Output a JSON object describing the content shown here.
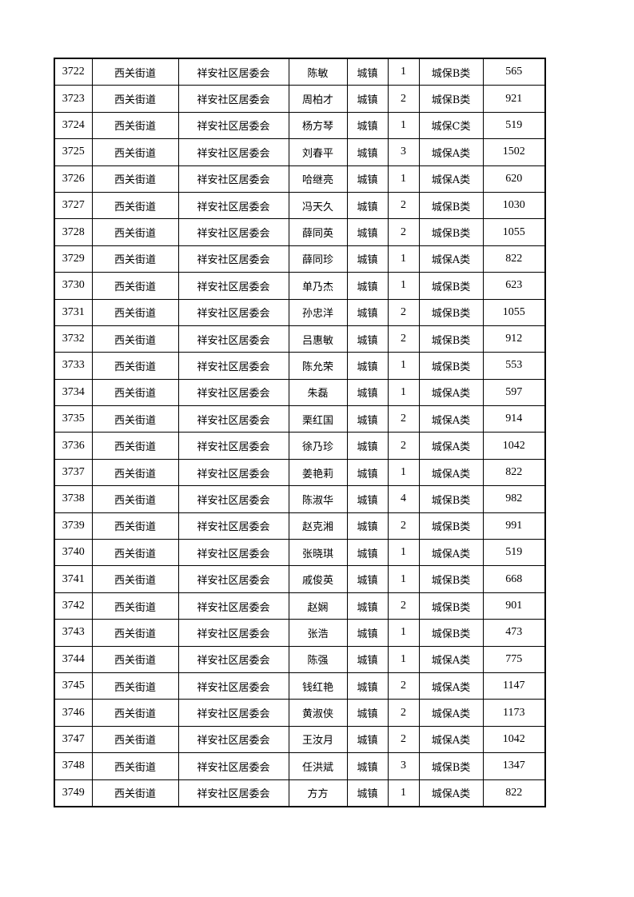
{
  "table": {
    "rows": [
      [
        "3722",
        "西关街道",
        "祥安社区居委会",
        "陈敏",
        "城镇",
        "1",
        "城保B类",
        "565"
      ],
      [
        "3723",
        "西关街道",
        "祥安社区居委会",
        "周柏才",
        "城镇",
        "2",
        "城保B类",
        "921"
      ],
      [
        "3724",
        "西关街道",
        "祥安社区居委会",
        "杨方琴",
        "城镇",
        "1",
        "城保C类",
        "519"
      ],
      [
        "3725",
        "西关街道",
        "祥安社区居委会",
        "刘春平",
        "城镇",
        "3",
        "城保A类",
        "1502"
      ],
      [
        "3726",
        "西关街道",
        "祥安社区居委会",
        "哈继亮",
        "城镇",
        "1",
        "城保A类",
        "620"
      ],
      [
        "3727",
        "西关街道",
        "祥安社区居委会",
        "冯天久",
        "城镇",
        "2",
        "城保B类",
        "1030"
      ],
      [
        "3728",
        "西关街道",
        "祥安社区居委会",
        "薛同英",
        "城镇",
        "2",
        "城保B类",
        "1055"
      ],
      [
        "3729",
        "西关街道",
        "祥安社区居委会",
        "薛同珍",
        "城镇",
        "1",
        "城保A类",
        "822"
      ],
      [
        "3730",
        "西关街道",
        "祥安社区居委会",
        "单乃杰",
        "城镇",
        "1",
        "城保B类",
        "623"
      ],
      [
        "3731",
        "西关街道",
        "祥安社区居委会",
        "孙忠洋",
        "城镇",
        "2",
        "城保B类",
        "1055"
      ],
      [
        "3732",
        "西关街道",
        "祥安社区居委会",
        "吕惠敏",
        "城镇",
        "2",
        "城保B类",
        "912"
      ],
      [
        "3733",
        "西关街道",
        "祥安社区居委会",
        "陈允荣",
        "城镇",
        "1",
        "城保B类",
        "553"
      ],
      [
        "3734",
        "西关街道",
        "祥安社区居委会",
        "朱磊",
        "城镇",
        "1",
        "城保A类",
        "597"
      ],
      [
        "3735",
        "西关街道",
        "祥安社区居委会",
        "栗红国",
        "城镇",
        "2",
        "城保A类",
        "914"
      ],
      [
        "3736",
        "西关街道",
        "祥安社区居委会",
        "徐乃珍",
        "城镇",
        "2",
        "城保A类",
        "1042"
      ],
      [
        "3737",
        "西关街道",
        "祥安社区居委会",
        "姜艳莉",
        "城镇",
        "1",
        "城保A类",
        "822"
      ],
      [
        "3738",
        "西关街道",
        "祥安社区居委会",
        "陈淑华",
        "城镇",
        "4",
        "城保B类",
        "982"
      ],
      [
        "3739",
        "西关街道",
        "祥安社区居委会",
        "赵克湘",
        "城镇",
        "2",
        "城保B类",
        "991"
      ],
      [
        "3740",
        "西关街道",
        "祥安社区居委会",
        "张晓琪",
        "城镇",
        "1",
        "城保A类",
        "519"
      ],
      [
        "3741",
        "西关街道",
        "祥安社区居委会",
        "戚俊英",
        "城镇",
        "1",
        "城保B类",
        "668"
      ],
      [
        "3742",
        "西关街道",
        "祥安社区居委会",
        "赵娴",
        "城镇",
        "2",
        "城保B类",
        "901"
      ],
      [
        "3743",
        "西关街道",
        "祥安社区居委会",
        "张浩",
        "城镇",
        "1",
        "城保B类",
        "473"
      ],
      [
        "3744",
        "西关街道",
        "祥安社区居委会",
        "陈强",
        "城镇",
        "1",
        "城保A类",
        "775"
      ],
      [
        "3745",
        "西关街道",
        "祥安社区居委会",
        "钱红艳",
        "城镇",
        "2",
        "城保A类",
        "1147"
      ],
      [
        "3746",
        "西关街道",
        "祥安社区居委会",
        "黄淑侠",
        "城镇",
        "2",
        "城保A类",
        "1173"
      ],
      [
        "3747",
        "西关街道",
        "祥安社区居委会",
        "王汝月",
        "城镇",
        "2",
        "城保A类",
        "1042"
      ],
      [
        "3748",
        "西关街道",
        "祥安社区居委会",
        "任洪斌",
        "城镇",
        "3",
        "城保B类",
        "1347"
      ],
      [
        "3749",
        "西关街道",
        "祥安社区居委会",
        "方方",
        "城镇",
        "1",
        "城保A类",
        "822"
      ]
    ]
  }
}
